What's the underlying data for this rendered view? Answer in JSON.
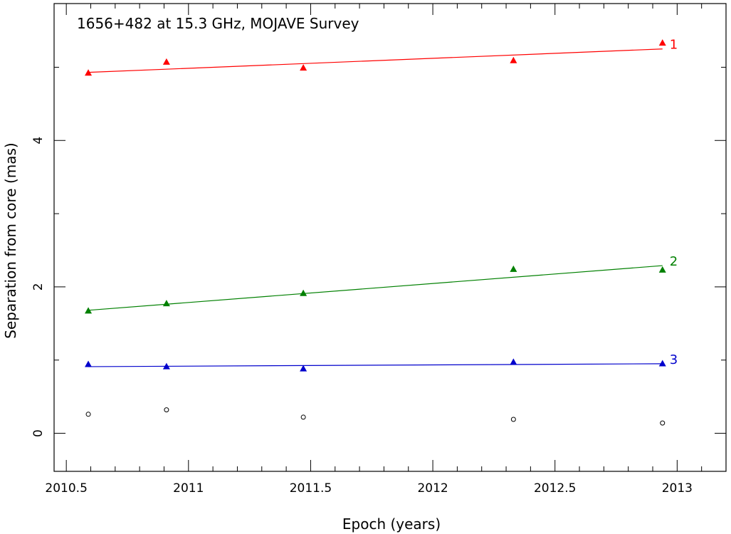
{
  "chart_data": {
    "type": "scatter",
    "title": "1656+482 at 15.3 GHz, MOJAVE Survey",
    "xlabel": "Epoch (years)",
    "ylabel": "Separation from core (mas)",
    "xlim": [
      2010.45,
      2013.2
    ],
    "ylim": [
      -0.52,
      5.87
    ],
    "x_ticks": [
      {
        "value": 2010.5,
        "label": "2010.5"
      },
      {
        "value": 2011,
        "label": "2011"
      },
      {
        "value": 2011.5,
        "label": "2011.5"
      },
      {
        "value": 2012,
        "label": "2012"
      },
      {
        "value": 2012.5,
        "label": "2012.5"
      },
      {
        "value": 2013,
        "label": "2013"
      }
    ],
    "y_ticks": [
      {
        "value": 0,
        "label": "0"
      },
      {
        "value": 2,
        "label": "2"
      },
      {
        "value": 4,
        "label": "4"
      }
    ],
    "x_minor_step": 0.1,
    "y_minor_step": 1,
    "grid": false,
    "series": [
      {
        "name": "1",
        "color": "#ff0000",
        "marker": "triangle",
        "x": [
          2010.59,
          2010.91,
          2011.47,
          2012.33,
          2012.94
        ],
        "y": [
          4.92,
          5.07,
          4.99,
          5.09,
          5.33
        ],
        "fit": [
          [
            2010.59,
            4.93
          ],
          [
            2012.94,
            5.25
          ]
        ]
      },
      {
        "name": "2",
        "color": "#008000",
        "marker": "triangle",
        "x": [
          2010.59,
          2010.91,
          2011.47,
          2012.33,
          2012.94
        ],
        "y": [
          1.67,
          1.77,
          1.91,
          2.24,
          2.23
        ],
        "fit": [
          [
            2010.59,
            1.68
          ],
          [
            2012.94,
            2.29
          ]
        ]
      },
      {
        "name": "3",
        "color": "#0000cc",
        "marker": "triangle",
        "x": [
          2010.59,
          2010.91,
          2011.47,
          2012.33,
          2012.94
        ],
        "y": [
          0.94,
          0.91,
          0.88,
          0.97,
          0.95
        ],
        "fit": [
          [
            2010.59,
            0.91
          ],
          [
            2012.94,
            0.95
          ]
        ]
      },
      {
        "color": "#000000",
        "marker": "circle-open",
        "x": [
          2010.59,
          2010.91,
          2011.47,
          2012.33,
          2012.94
        ],
        "y": [
          0.26,
          0.32,
          0.22,
          0.19,
          0.14
        ]
      }
    ]
  }
}
